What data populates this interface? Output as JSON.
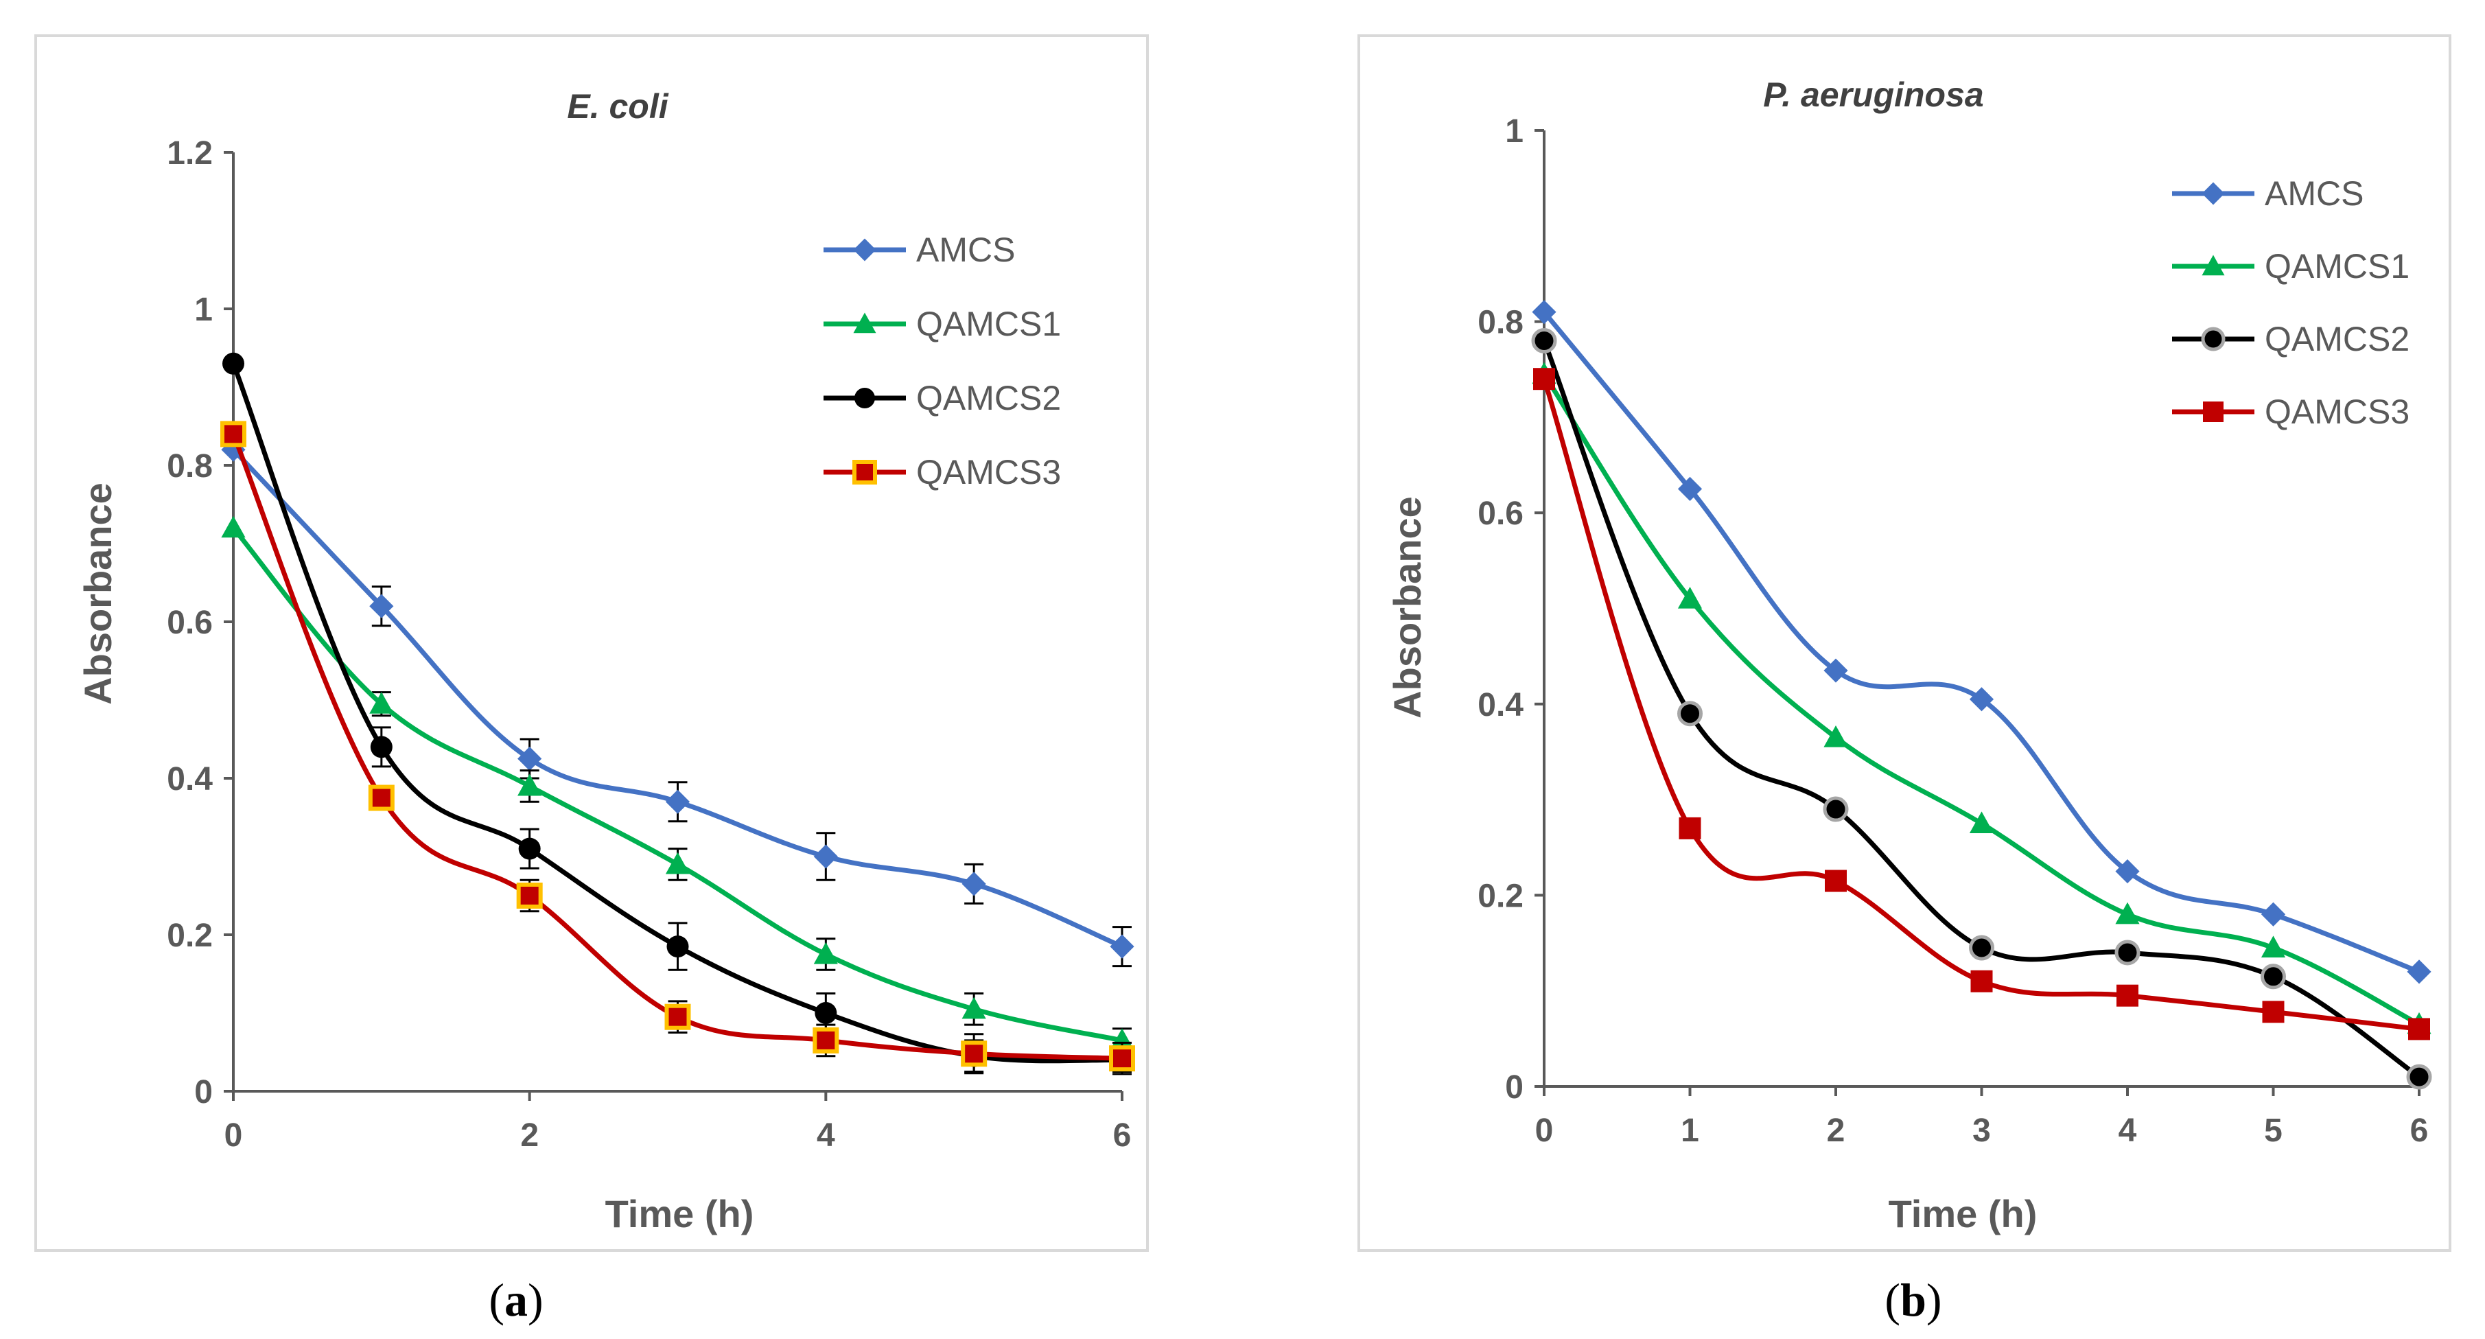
{
  "chart_data": [
    {
      "type": "line",
      "panel_label": "a",
      "title": "E. coli",
      "xlabel": "Time (h)",
      "ylabel": "Absorbance",
      "xlim": [
        0,
        6
      ],
      "ylim": [
        0,
        1.2
      ],
      "xticks": [
        "0",
        "2",
        "4",
        "6"
      ],
      "yticks": [
        "0",
        "0.2",
        "0.4",
        "0.6",
        "0.8",
        "1",
        "1.2"
      ],
      "x": [
        0,
        1,
        2,
        3,
        4,
        5,
        6
      ],
      "legend_position": "top-right",
      "series": [
        {
          "name": "AMCS",
          "color": "#4472c4",
          "marker": "diamond",
          "values": [
            0.82,
            0.62,
            0.425,
            0.37,
            0.3,
            0.265,
            0.185
          ],
          "errors": [
            0.0,
            0.025,
            0.025,
            0.025,
            0.03,
            0.025,
            0.025
          ]
        },
        {
          "name": "QAMCS1",
          "color": "#00b050",
          "marker": "triangle",
          "values": [
            0.72,
            0.495,
            0.39,
            0.29,
            0.175,
            0.105,
            0.065
          ],
          "errors": [
            0.0,
            0.015,
            0.02,
            0.02,
            0.02,
            0.02,
            0.015
          ]
        },
        {
          "name": "QAMCS2",
          "color": "#000000",
          "marker": "circle",
          "values": [
            0.93,
            0.44,
            0.31,
            0.185,
            0.1,
            0.045,
            0.04
          ],
          "errors": [
            0.0,
            0.025,
            0.025,
            0.03,
            0.025,
            0.02,
            0.015
          ]
        },
        {
          "name": "QAMCS3",
          "color": "#c00000",
          "marker": "square-yellow",
          "values": [
            0.84,
            0.375,
            0.25,
            0.095,
            0.065,
            0.048,
            0.042
          ],
          "errors": [
            0.0,
            0.015,
            0.02,
            0.02,
            0.02,
            0.025,
            0.02
          ]
        }
      ]
    },
    {
      "type": "line",
      "panel_label": "b",
      "title": "P. aeruginosa",
      "xlabel": "Time (h)",
      "ylabel": "Absorbance",
      "xlim": [
        0,
        6
      ],
      "ylim": [
        0,
        1
      ],
      "xticks": [
        "0",
        "1",
        "2",
        "3",
        "4",
        "5",
        "6"
      ],
      "yticks": [
        "0",
        "0.2",
        "0.4",
        "0.6",
        "0.8",
        "1"
      ],
      "x": [
        0,
        1,
        2,
        3,
        4,
        5,
        6
      ],
      "legend_position": "top-right",
      "series": [
        {
          "name": "AMCS",
          "color": "#4472c4",
          "marker": "diamond",
          "values": [
            0.81,
            0.625,
            0.435,
            0.405,
            0.225,
            0.18,
            0.12
          ]
        },
        {
          "name": "QAMCS1",
          "color": "#00b050",
          "marker": "triangle",
          "values": [
            0.745,
            0.51,
            0.365,
            0.275,
            0.18,
            0.145,
            0.065
          ]
        },
        {
          "name": "QAMCS2",
          "color": "#000000",
          "marker": "circle-gray",
          "values": [
            0.78,
            0.39,
            0.29,
            0.145,
            0.14,
            0.115,
            0.01
          ]
        },
        {
          "name": "QAMCS3",
          "color": "#c00000",
          "marker": "square",
          "values": [
            0.74,
            0.27,
            0.215,
            0.11,
            0.095,
            0.078,
            0.06
          ]
        }
      ]
    }
  ]
}
